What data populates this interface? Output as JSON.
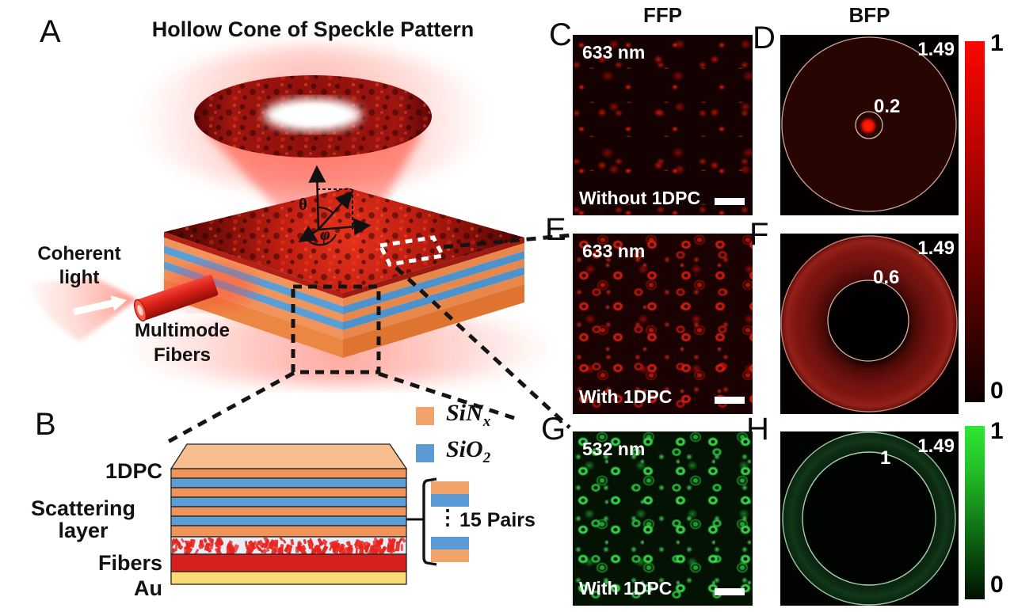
{
  "panel_a": {
    "letter": "A",
    "title": "Hollow Cone of Speckle Pattern",
    "coherent_line1": "Coherent",
    "coherent_line2": "light",
    "multimode_line1": "Multimode",
    "multimode_line2": "Fibers",
    "theta": "θ",
    "phi": "φ"
  },
  "panel_b": {
    "letter": "B",
    "label_1dpc": "1DPC",
    "label_scattering_line1": "Scattering",
    "label_scattering_line2": "layer",
    "label_fibers": "Fibers",
    "label_au": "Au",
    "legend": {
      "sin_base": "SiN",
      "sin_sub": "x",
      "sin_color": "#F2A36B",
      "sio_base": "SiO",
      "sio_sub": "2",
      "sio_color": "#5B9BD5"
    },
    "pairs_label": "15 Pairs",
    "dots": "⋮",
    "layer_colors": {
      "top_cap": "#F6BD8F",
      "sin_layer": "#F0945C",
      "sio_layer": "#5B9ED6",
      "scattering_bg": "#E8EDF5",
      "scatter_dots": "#E8231D",
      "fibers": "#D81F1F",
      "au": "#F8DC72"
    }
  },
  "columns": {
    "ffp": "FFP",
    "bfp": "BFP"
  },
  "panels": {
    "c": {
      "letter": "C",
      "wavelength": "633 nm",
      "condition": "Without 1DPC"
    },
    "d": {
      "letter": "D",
      "na_outer": "1.49",
      "na_inner": "0.2"
    },
    "e": {
      "letter": "E",
      "wavelength": "633 nm",
      "condition": "With 1DPC"
    },
    "f": {
      "letter": "F",
      "na_outer": "1.49",
      "na_inner": "0.6"
    },
    "g": {
      "letter": "G",
      "wavelength": "532 nm",
      "condition": "With 1DPC"
    },
    "h": {
      "letter": "H",
      "na_outer": "1.49",
      "na_inner": "1"
    }
  },
  "colorbars": {
    "red": {
      "max": "1",
      "min": "0",
      "top_color": "#FF0600",
      "bottom_color": "#0C0000"
    },
    "green": {
      "max": "1",
      "min": "0",
      "top_color": "#2FE833",
      "bottom_color": "#010E02"
    }
  }
}
